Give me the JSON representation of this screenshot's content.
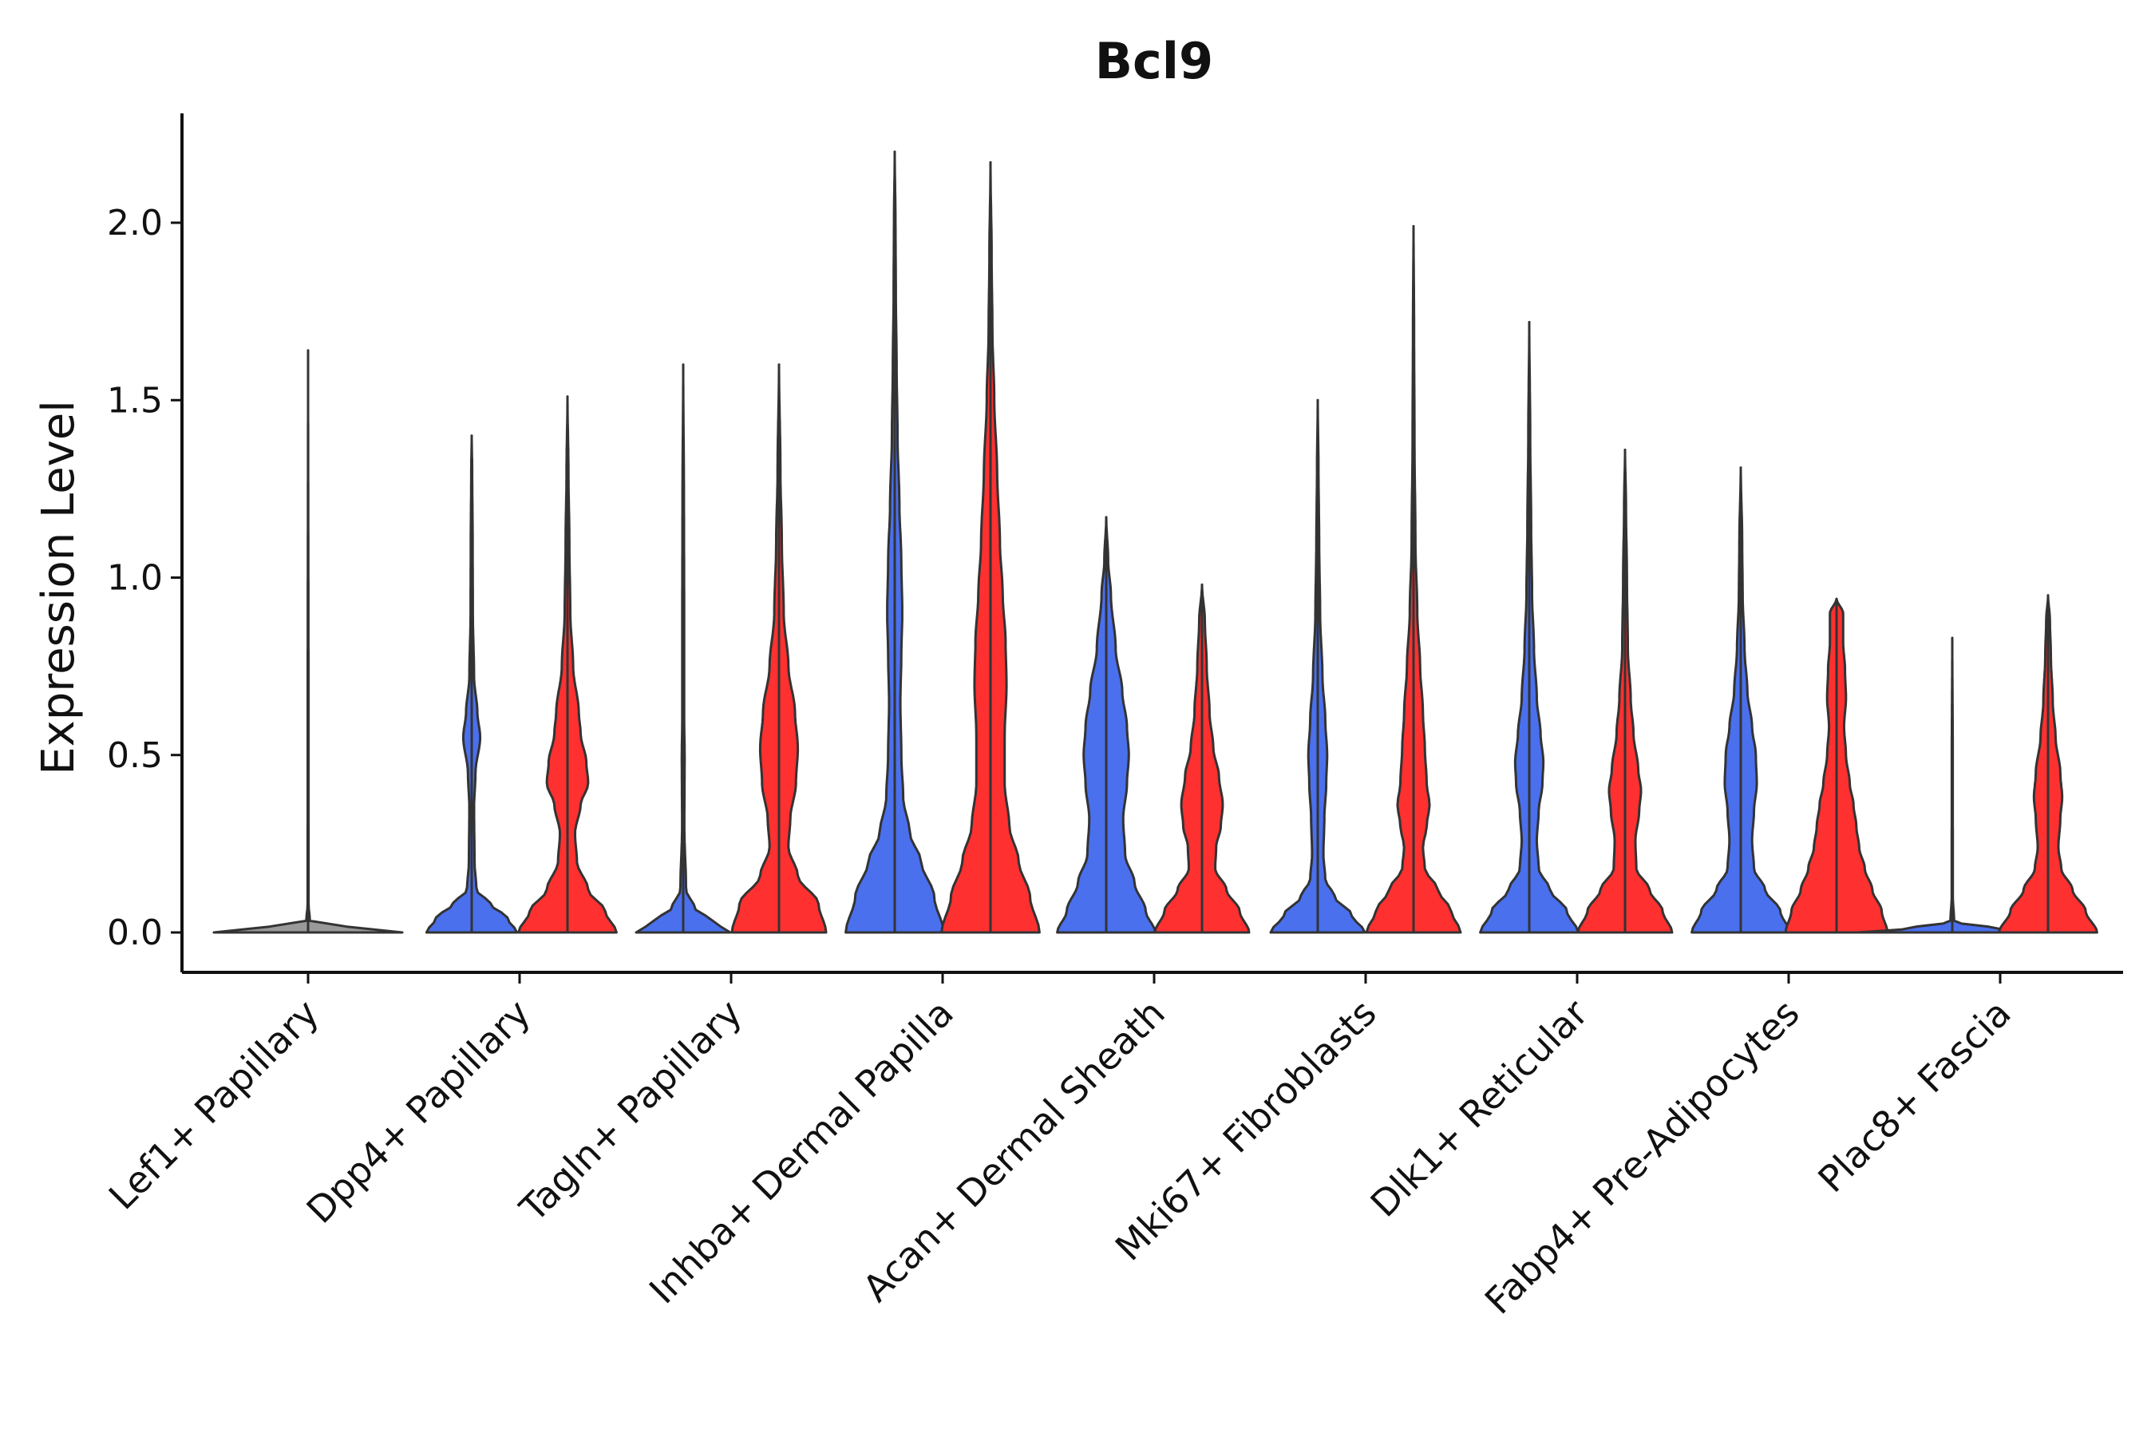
{
  "chart_data": {
    "type": "violin",
    "title": "Bcl9",
    "xlabel": "",
    "ylabel": "Expression Level",
    "ylim": [
      -0.11,
      2.32
    ],
    "yticks": [
      0.0,
      0.5,
      1.0,
      1.5,
      2.0
    ],
    "ytick_labels": [
      "0.0",
      "0.5",
      "1.0",
      "1.5",
      "2.0"
    ],
    "grid": false,
    "legend": "none",
    "split_colors": {
      "left": "#4a70ee",
      "right": "#ff3030"
    },
    "outline_color": "#333333",
    "categories": [
      "Lef1+ Papillary",
      "Dpp4+ Papillary",
      "Tagln+ Papillary",
      "Inhba+ Dermal Papilla",
      "Acan+ Dermal Sheath",
      "Mki67+ Fibroblasts",
      "Dlk1+ Reticular",
      "Fabp4+ Pre-Adipocytes",
      "Plac8+ Fascia"
    ],
    "violins": [
      {
        "category": "Lef1+ Papillary",
        "left": {
          "max": 1.64,
          "density": [
            [
              0,
              1.0
            ],
            [
              0.008,
              0.6
            ],
            [
              0.03,
              0.02
            ],
            [
              0.08,
              0.005
            ],
            [
              0.66,
              0.004
            ],
            [
              1.64,
              0.0
            ]
          ]
        },
        "right": null
      },
      {
        "category": "Dpp4+ Papillary",
        "left": {
          "max": 1.4,
          "density": [
            [
              0,
              0.48
            ],
            [
              0.04,
              0.38
            ],
            [
              0.08,
              0.2
            ],
            [
              0.12,
              0.05
            ],
            [
              0.2,
              0.03
            ],
            [
              0.35,
              0.025
            ],
            [
              0.45,
              0.04
            ],
            [
              0.55,
              0.09
            ],
            [
              0.62,
              0.06
            ],
            [
              0.72,
              0.025
            ],
            [
              0.9,
              0.012
            ],
            [
              1.1,
              0.01
            ],
            [
              1.3,
              0.005
            ],
            [
              1.4,
              0.0
            ]
          ]
        },
        "right": {
          "max": 1.51,
          "density": [
            [
              0,
              0.52
            ],
            [
              0.06,
              0.4
            ],
            [
              0.12,
              0.22
            ],
            [
              0.2,
              0.1
            ],
            [
              0.28,
              0.08
            ],
            [
              0.36,
              0.14
            ],
            [
              0.42,
              0.22
            ],
            [
              0.48,
              0.2
            ],
            [
              0.56,
              0.14
            ],
            [
              0.62,
              0.12
            ],
            [
              0.75,
              0.06
            ],
            [
              0.9,
              0.03
            ],
            [
              1.1,
              0.02
            ],
            [
              1.3,
              0.01
            ],
            [
              1.51,
              0.0
            ]
          ]
        }
      },
      {
        "category": "Tagln+ Papillary",
        "left": {
          "max": 1.6,
          "density": [
            [
              0,
              0.5
            ],
            [
              0.03,
              0.32
            ],
            [
              0.07,
              0.12
            ],
            [
              0.12,
              0.03
            ],
            [
              0.3,
              0.012
            ],
            [
              0.5,
              0.015
            ],
            [
              0.6,
              0.01
            ],
            [
              0.9,
              0.01
            ],
            [
              1.2,
              0.008
            ],
            [
              1.6,
              0.0
            ]
          ]
        },
        "right": {
          "max": 1.6,
          "density": [
            [
              0,
              0.5
            ],
            [
              0.08,
              0.42
            ],
            [
              0.16,
              0.2
            ],
            [
              0.24,
              0.1
            ],
            [
              0.32,
              0.12
            ],
            [
              0.42,
              0.18
            ],
            [
              0.52,
              0.2
            ],
            [
              0.62,
              0.17
            ],
            [
              0.75,
              0.1
            ],
            [
              0.9,
              0.05
            ],
            [
              1.1,
              0.03
            ],
            [
              1.3,
              0.015
            ],
            [
              1.6,
              0.0
            ]
          ]
        }
      },
      {
        "category": "Inhba+ Dermal Papilla",
        "left": {
          "max": 2.2,
          "density": [
            [
              0,
              0.52
            ],
            [
              0.1,
              0.42
            ],
            [
              0.2,
              0.28
            ],
            [
              0.28,
              0.16
            ],
            [
              0.38,
              0.09
            ],
            [
              0.5,
              0.07
            ],
            [
              0.65,
              0.06
            ],
            [
              0.78,
              0.07
            ],
            [
              0.9,
              0.08
            ],
            [
              1.05,
              0.07
            ],
            [
              1.2,
              0.05
            ],
            [
              1.4,
              0.03
            ],
            [
              1.6,
              0.02
            ],
            [
              1.8,
              0.012
            ],
            [
              2.0,
              0.008
            ],
            [
              2.2,
              0.0
            ]
          ]
        },
        "right": {
          "max": 2.17,
          "density": [
            [
              0,
              0.52
            ],
            [
              0.1,
              0.42
            ],
            [
              0.2,
              0.3
            ],
            [
              0.3,
              0.2
            ],
            [
              0.42,
              0.15
            ],
            [
              0.55,
              0.15
            ],
            [
              0.7,
              0.17
            ],
            [
              0.82,
              0.16
            ],
            [
              0.95,
              0.13
            ],
            [
              1.1,
              0.1
            ],
            [
              1.3,
              0.07
            ],
            [
              1.5,
              0.04
            ],
            [
              1.7,
              0.02
            ],
            [
              1.9,
              0.012
            ],
            [
              2.17,
              0.0
            ]
          ]
        }
      },
      {
        "category": "Acan+ Dermal Sheath",
        "left": {
          "max": 1.17,
          "density": [
            [
              0,
              0.52
            ],
            [
              0.06,
              0.42
            ],
            [
              0.14,
              0.3
            ],
            [
              0.22,
              0.2
            ],
            [
              0.32,
              0.18
            ],
            [
              0.42,
              0.22
            ],
            [
              0.5,
              0.24
            ],
            [
              0.58,
              0.22
            ],
            [
              0.68,
              0.17
            ],
            [
              0.8,
              0.1
            ],
            [
              0.95,
              0.05
            ],
            [
              1.05,
              0.02
            ],
            [
              1.17,
              0.0
            ]
          ]
        },
        "right": {
          "max": 0.98,
          "density": [
            [
              0,
              0.5
            ],
            [
              0.06,
              0.4
            ],
            [
              0.12,
              0.26
            ],
            [
              0.18,
              0.14
            ],
            [
              0.24,
              0.15
            ],
            [
              0.3,
              0.2
            ],
            [
              0.36,
              0.22
            ],
            [
              0.44,
              0.18
            ],
            [
              0.52,
              0.12
            ],
            [
              0.62,
              0.08
            ],
            [
              0.75,
              0.05
            ],
            [
              0.88,
              0.03
            ],
            [
              0.98,
              0.0
            ]
          ]
        }
      },
      {
        "category": "Mki67+ Fibroblasts",
        "left": {
          "max": 1.5,
          "density": [
            [
              0,
              0.5
            ],
            [
              0.05,
              0.36
            ],
            [
              0.1,
              0.18
            ],
            [
              0.15,
              0.08
            ],
            [
              0.22,
              0.06
            ],
            [
              0.32,
              0.07
            ],
            [
              0.42,
              0.09
            ],
            [
              0.5,
              0.1
            ],
            [
              0.6,
              0.08
            ],
            [
              0.72,
              0.05
            ],
            [
              0.9,
              0.025
            ],
            [
              1.1,
              0.015
            ],
            [
              1.3,
              0.008
            ],
            [
              1.5,
              0.0
            ]
          ]
        },
        "right": {
          "max": 1.99,
          "density": [
            [
              0,
              0.5
            ],
            [
              0.06,
              0.4
            ],
            [
              0.12,
              0.26
            ],
            [
              0.18,
              0.12
            ],
            [
              0.24,
              0.1
            ],
            [
              0.3,
              0.14
            ],
            [
              0.36,
              0.17
            ],
            [
              0.42,
              0.14
            ],
            [
              0.52,
              0.12
            ],
            [
              0.62,
              0.1
            ],
            [
              0.75,
              0.07
            ],
            [
              0.9,
              0.04
            ],
            [
              1.1,
              0.02
            ],
            [
              1.4,
              0.01
            ],
            [
              1.7,
              0.006
            ],
            [
              1.99,
              0.0
            ]
          ]
        }
      },
      {
        "category": "Dlk1+ Reticular",
        "left": {
          "max": 1.72,
          "density": [
            [
              0,
              0.52
            ],
            [
              0.06,
              0.4
            ],
            [
              0.12,
              0.22
            ],
            [
              0.18,
              0.1
            ],
            [
              0.26,
              0.08
            ],
            [
              0.34,
              0.1
            ],
            [
              0.42,
              0.14
            ],
            [
              0.48,
              0.15
            ],
            [
              0.56,
              0.12
            ],
            [
              0.66,
              0.08
            ],
            [
              0.8,
              0.05
            ],
            [
              0.95,
              0.03
            ],
            [
              1.15,
              0.02
            ],
            [
              1.4,
              0.01
            ],
            [
              1.72,
              0.0
            ]
          ]
        },
        "right": {
          "max": 1.36,
          "density": [
            [
              0,
              0.5
            ],
            [
              0.06,
              0.4
            ],
            [
              0.12,
              0.26
            ],
            [
              0.18,
              0.12
            ],
            [
              0.26,
              0.11
            ],
            [
              0.34,
              0.15
            ],
            [
              0.4,
              0.17
            ],
            [
              0.46,
              0.14
            ],
            [
              0.56,
              0.09
            ],
            [
              0.66,
              0.06
            ],
            [
              0.8,
              0.03
            ],
            [
              1.0,
              0.02
            ],
            [
              1.2,
              0.01
            ],
            [
              1.36,
              0.0
            ]
          ]
        }
      },
      {
        "category": "Fabp4+ Pre-Adipocytes",
        "left": {
          "max": 1.31,
          "density": [
            [
              0,
              0.52
            ],
            [
              0.06,
              0.42
            ],
            [
              0.12,
              0.26
            ],
            [
              0.18,
              0.14
            ],
            [
              0.26,
              0.12
            ],
            [
              0.34,
              0.14
            ],
            [
              0.42,
              0.17
            ],
            [
              0.5,
              0.16
            ],
            [
              0.58,
              0.12
            ],
            [
              0.68,
              0.07
            ],
            [
              0.8,
              0.04
            ],
            [
              0.95,
              0.02
            ],
            [
              1.1,
              0.015
            ],
            [
              1.31,
              0.0
            ]
          ]
        },
        "right": {
          "max": 0.94,
          "density": [
            [
              0,
              0.54
            ],
            [
              0.06,
              0.48
            ],
            [
              0.12,
              0.38
            ],
            [
              0.18,
              0.3
            ],
            [
              0.24,
              0.24
            ],
            [
              0.3,
              0.21
            ],
            [
              0.36,
              0.18
            ],
            [
              0.42,
              0.14
            ],
            [
              0.5,
              0.1
            ],
            [
              0.58,
              0.08
            ],
            [
              0.66,
              0.1
            ],
            [
              0.74,
              0.09
            ],
            [
              0.82,
              0.07
            ],
            [
              0.9,
              0.07
            ],
            [
              0.94,
              0.0
            ]
          ]
        }
      },
      {
        "category": "Plac8+ Fascia",
        "left": {
          "max": 0.83,
          "density": [
            [
              0,
              1.0
            ],
            [
              0.01,
              0.5
            ],
            [
              0.03,
              0.02
            ],
            [
              0.1,
              0.006
            ],
            [
              0.5,
              0.005
            ],
            [
              0.83,
              0.0
            ]
          ]
        },
        "right": {
          "max": 0.95,
          "density": [
            [
              0,
              0.52
            ],
            [
              0.06,
              0.4
            ],
            [
              0.12,
              0.26
            ],
            [
              0.18,
              0.14
            ],
            [
              0.24,
              0.11
            ],
            [
              0.32,
              0.13
            ],
            [
              0.38,
              0.15
            ],
            [
              0.45,
              0.13
            ],
            [
              0.55,
              0.08
            ],
            [
              0.65,
              0.05
            ],
            [
              0.78,
              0.03
            ],
            [
              0.88,
              0.02
            ],
            [
              0.95,
              0.0
            ]
          ]
        }
      }
    ]
  }
}
